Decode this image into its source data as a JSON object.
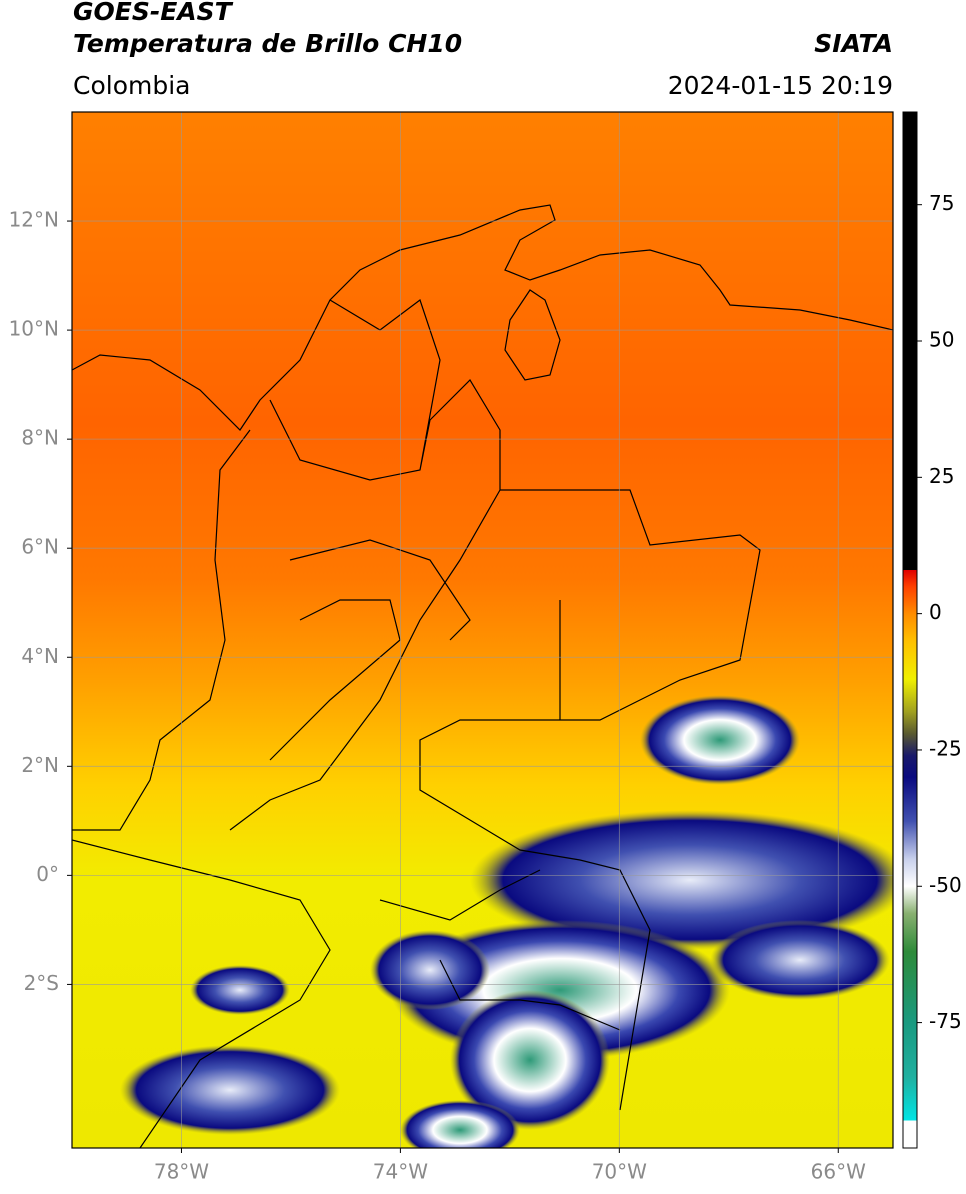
{
  "header": {
    "title": "GOES-EAST",
    "subtitle": "Temperatura de Brillo CH10",
    "agency": "SIATA",
    "region": "Colombia",
    "timestamp": "2024-01-15 20:19"
  },
  "map": {
    "xlim": [
      -80,
      -65
    ],
    "ylim": [
      -5,
      14
    ],
    "grid": true,
    "xticks": [
      {
        "value": -78,
        "label": "78°W"
      },
      {
        "value": -74,
        "label": "74°W"
      },
      {
        "value": -70,
        "label": "70°W"
      },
      {
        "value": -66,
        "label": "66°W"
      }
    ],
    "yticks": [
      {
        "value": 12,
        "label": "12°N"
      },
      {
        "value": 10,
        "label": "10°N"
      },
      {
        "value": 8,
        "label": "8°N"
      },
      {
        "value": 6,
        "label": "6°N"
      },
      {
        "value": 4,
        "label": "4°N"
      },
      {
        "value": 2,
        "label": "2°N"
      },
      {
        "value": 0,
        "label": "0°"
      },
      {
        "value": -2,
        "label": "2°S"
      }
    ]
  },
  "colorbar": {
    "lim": [
      -98,
      92
    ],
    "ticks": [
      75,
      50,
      25,
      0,
      -25,
      -50,
      -75
    ],
    "stops": [
      {
        "value": -98,
        "color": "#ffffff"
      },
      {
        "value": -93,
        "color": "#ffffff"
      },
      {
        "value": -93,
        "color": "#00e5e5"
      },
      {
        "value": -85,
        "color": "#20b0a0"
      },
      {
        "value": -75,
        "color": "#1a9a80"
      },
      {
        "value": -62,
        "color": "#2e8b3a"
      },
      {
        "value": -55,
        "color": "#88b070"
      },
      {
        "value": -50,
        "color": "#ffffff"
      },
      {
        "value": -45,
        "color": "#c8d0ec"
      },
      {
        "value": -38,
        "color": "#4050b0"
      },
      {
        "value": -30,
        "color": "#0a0a80"
      },
      {
        "value": -26,
        "color": "#1a1a6a"
      },
      {
        "value": -22,
        "color": "#5a5a30"
      },
      {
        "value": -18,
        "color": "#a0a020"
      },
      {
        "value": -12,
        "color": "#f0f000"
      },
      {
        "value": -5,
        "color": "#ffc000"
      },
      {
        "value": 0,
        "color": "#ff8c00"
      },
      {
        "value": 5,
        "color": "#ff4000"
      },
      {
        "value": 8,
        "color": "#e00000"
      },
      {
        "value": 8,
        "color": "#000000"
      },
      {
        "value": 92,
        "color": "#000000"
      }
    ]
  }
}
